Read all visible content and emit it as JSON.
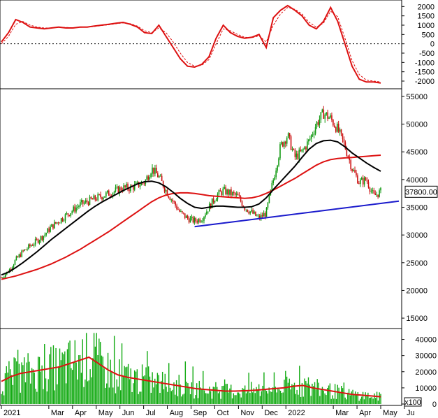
{
  "chart_data": [
    {
      "type": "line",
      "panel": "oscillator",
      "ylim": [
        -2300,
        2200
      ],
      "yticks": [
        2000,
        1500,
        1000,
        500,
        0,
        -500,
        -1000,
        -1500,
        -2000
      ],
      "zero_line": "dotted",
      "colors": {
        "main": "#dd1111",
        "signal": "#dd1111"
      },
      "series": [
        {
          "values": [
            100,
            600,
            1300,
            1150,
            900,
            850,
            800,
            850,
            900,
            850,
            850,
            900,
            900,
            950,
            1000,
            1050,
            1100,
            1150,
            1050,
            900,
            600,
            550,
            1000,
            400,
            -200,
            -800,
            -1200,
            -1250,
            -1100,
            -700,
            300,
            1000,
            600,
            400,
            300,
            350,
            500,
            -200,
            1400,
            1800,
            2050,
            1800,
            1500,
            1000,
            800,
            1200,
            1950,
            1200,
            0,
            -1200,
            -1900,
            -2050,
            -2050,
            -2100
          ]
        },
        {
          "values": [
            0,
            400,
            1050,
            1200,
            1000,
            900,
            850,
            850,
            880,
            880,
            860,
            880,
            900,
            930,
            980,
            1020,
            1080,
            1120,
            1080,
            950,
            700,
            600,
            850,
            600,
            100,
            -500,
            -1000,
            -1200,
            -1150,
            -850,
            0,
            800,
            700,
            500,
            350,
            330,
            430,
            100,
            1000,
            1600,
            1950,
            1850,
            1600,
            1150,
            900,
            1100,
            1750,
            1450,
            300,
            -900,
            -1650,
            -1950,
            -2000,
            -2050
          ]
        }
      ]
    },
    {
      "type": "candlestick",
      "panel": "price",
      "ylim": [
        13500,
        56000
      ],
      "yticks": [
        55000,
        50000,
        45000,
        40000,
        35000,
        30000,
        25000,
        20000,
        15000
      ],
      "last_price_label": "37800.00",
      "colors": {
        "up": "#119911",
        "down": "#cc1111",
        "ma_short": "#000000",
        "ma_long": "#dd1111",
        "trendline": "#1a1acc"
      },
      "close": [
        22300,
        23500,
        25500,
        27000,
        28000,
        29000,
        30000,
        31500,
        32500,
        33500,
        34500,
        35500,
        36000,
        36500,
        37000,
        37500,
        38000,
        38500,
        38500,
        39000,
        39500,
        42000,
        40500,
        38000,
        36000,
        34000,
        33000,
        32500,
        33000,
        35000,
        37000,
        38000,
        37500,
        37000,
        35000,
        34000,
        33000,
        34000,
        40000,
        46000,
        48000,
        44000,
        45000,
        47000,
        50000,
        52000,
        51000,
        49000,
        46000,
        42000,
        39500,
        40000,
        37000,
        37800
      ],
      "ma_short": [
        22800,
        23300,
        24100,
        25000,
        26000,
        27000,
        28100,
        29200,
        30200,
        31200,
        32200,
        33200,
        34200,
        35100,
        35900,
        36600,
        37300,
        38000,
        38600,
        39200,
        39600,
        39700,
        39400,
        38700,
        37700,
        36600,
        35700,
        35000,
        34800,
        35000,
        35200,
        35200,
        35100,
        35000,
        35000,
        35100,
        35600,
        36700,
        38200,
        39600,
        41000,
        42400,
        44000,
        45500,
        46500,
        47000,
        47100,
        46800,
        45900,
        44800,
        43900,
        43000,
        42200,
        41500
      ],
      "ma_long": [
        22000,
        22300,
        22600,
        23000,
        23400,
        23800,
        24300,
        24800,
        25400,
        26000,
        26700,
        27400,
        28200,
        29000,
        29800,
        30600,
        31500,
        32400,
        33300,
        34200,
        35100,
        36000,
        36700,
        37200,
        37500,
        37600,
        37600,
        37500,
        37300,
        37100,
        37000,
        36900,
        36800,
        36700,
        36600,
        36700,
        37000,
        37500,
        38100,
        38800,
        39500,
        40200,
        41000,
        41800,
        42600,
        43200,
        43600,
        43800,
        43900,
        44000,
        44100,
        44200,
        44300,
        44400
      ],
      "trendline": {
        "start": {
          "month_index": 8.15,
          "value": 31500
        },
        "end": {
          "month_index": 16.0,
          "value": 36100
        }
      }
    },
    {
      "type": "bar",
      "panel": "volume",
      "ylim": [
        0,
        45000
      ],
      "yticks": [
        40000,
        30000,
        20000,
        10000,
        0
      ],
      "unit_label": "x100",
      "colors": {
        "bars": "#11aa11",
        "ma": "#dd1111"
      },
      "volume_ma": [
        14000,
        17000,
        19000,
        20000,
        21000,
        22000,
        23000,
        25000,
        27000,
        29000,
        25000,
        21000,
        18000,
        16500,
        15500,
        14500,
        13500,
        12500,
        11500,
        10500,
        9500,
        9000,
        8500,
        8000,
        8000,
        8200,
        8500,
        9000,
        9500,
        10000,
        11000,
        11500,
        10000,
        9000,
        8000,
        7000,
        6000,
        5500,
        5000,
        4500
      ]
    }
  ],
  "x_axis": {
    "labels": [
      "2021",
      "Mar",
      "Apr",
      "May",
      "Jun",
      "Jul",
      "Aug",
      "Sep",
      "Oct",
      "Nov",
      "Dec",
      "2022",
      "Mar",
      "Apr",
      "May",
      "Ju"
    ],
    "label_month_index": [
      0,
      2,
      3,
      4,
      5,
      6,
      7,
      8,
      9,
      10,
      11,
      12,
      14,
      15,
      16,
      17
    ]
  }
}
